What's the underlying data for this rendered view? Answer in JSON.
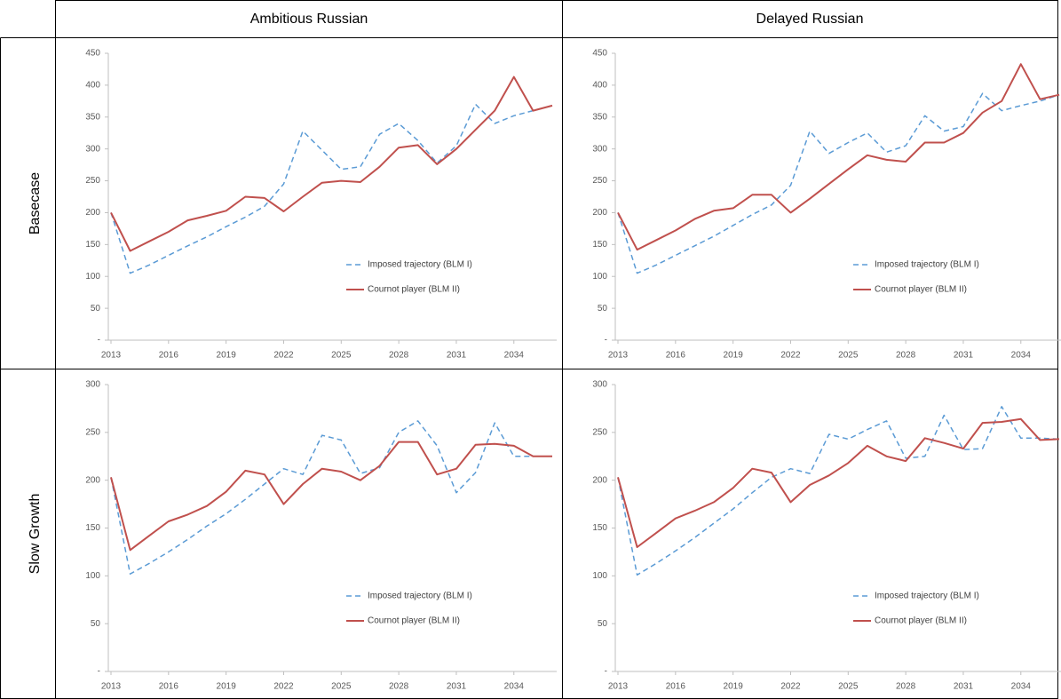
{
  "table": {
    "columns": [
      "Ambitious Russian",
      "Delayed Russian"
    ],
    "rows": [
      "Basecase",
      "Slow Growth"
    ]
  },
  "chart_data": [
    {
      "type": "line",
      "legend": "lower right",
      "x": [
        2013,
        2014,
        2015,
        2016,
        2017,
        2018,
        2019,
        2020,
        2021,
        2022,
        2023,
        2024,
        2025,
        2026,
        2027,
        2028,
        2029,
        2030,
        2031,
        2032,
        2033,
        2034,
        2035,
        2036
      ],
      "xlim": [
        2013,
        2036
      ],
      "xticks": [
        2013,
        2016,
        2019,
        2022,
        2025,
        2028,
        2031,
        2034
      ],
      "ylim": [
        0,
        450
      ],
      "yticks": [
        {
          "value": 0,
          "label": "-"
        },
        50,
        100,
        150,
        200,
        250,
        300,
        350,
        400,
        450
      ],
      "series": [
        {
          "name": "Imposed trajectory (BLM I)",
          "color": "#5b9bd5",
          "line_style": "dashed",
          "values": [
            200,
            105,
            118,
            133,
            148,
            162,
            178,
            193,
            210,
            245,
            328,
            298,
            268,
            272,
            323,
            340,
            313,
            278,
            305,
            370,
            340,
            352,
            360,
            368
          ]
        },
        {
          "name": "Cournot player (BLM II)",
          "color": "#c0504d",
          "line_style": "solid",
          "values": [
            200,
            140,
            155,
            170,
            188,
            195,
            203,
            225,
            223,
            202,
            225,
            247,
            250,
            248,
            272,
            302,
            306,
            276,
            300,
            330,
            360,
            413,
            360,
            368
          ]
        }
      ]
    },
    {
      "type": "line",
      "legend": "lower right",
      "x": [
        2013,
        2014,
        2015,
        2016,
        2017,
        2018,
        2019,
        2020,
        2021,
        2022,
        2023,
        2024,
        2025,
        2026,
        2027,
        2028,
        2029,
        2030,
        2031,
        2032,
        2033,
        2034,
        2035,
        2036
      ],
      "xlim": [
        2013,
        2036
      ],
      "xticks": [
        2013,
        2016,
        2019,
        2022,
        2025,
        2028,
        2031,
        2034
      ],
      "ylim": [
        0,
        450
      ],
      "yticks": [
        {
          "value": 0,
          "label": "-"
        },
        50,
        100,
        150,
        200,
        250,
        300,
        350,
        400,
        450
      ],
      "series": [
        {
          "name": "Imposed trajectory (BLM I)",
          "color": "#5b9bd5",
          "line_style": "dashed",
          "values": [
            200,
            105,
            118,
            133,
            148,
            163,
            180,
            197,
            212,
            243,
            328,
            293,
            310,
            325,
            295,
            305,
            352,
            328,
            335,
            387,
            360,
            368,
            375,
            385
          ]
        },
        {
          "name": "Cournot player (BLM II)",
          "color": "#c0504d",
          "line_style": "solid",
          "values": [
            200,
            142,
            157,
            172,
            190,
            203,
            207,
            228,
            228,
            200,
            222,
            245,
            268,
            290,
            283,
            280,
            310,
            310,
            325,
            357,
            375,
            433,
            378,
            385
          ]
        }
      ]
    },
    {
      "type": "line",
      "legend": "lower right",
      "x": [
        2013,
        2014,
        2015,
        2016,
        2017,
        2018,
        2019,
        2020,
        2021,
        2022,
        2023,
        2024,
        2025,
        2026,
        2027,
        2028,
        2029,
        2030,
        2031,
        2032,
        2033,
        2034,
        2035,
        2036
      ],
      "xlim": [
        2013,
        2036
      ],
      "xticks": [
        2013,
        2016,
        2019,
        2022,
        2025,
        2028,
        2031,
        2034
      ],
      "ylim": [
        0,
        300
      ],
      "yticks": [
        {
          "value": 0,
          "label": "-"
        },
        50,
        100,
        150,
        200,
        250,
        300
      ],
      "series": [
        {
          "name": "Imposed trajectory (BLM I)",
          "color": "#5b9bd5",
          "line_style": "dashed",
          "values": [
            203,
            102,
            113,
            125,
            138,
            152,
            165,
            180,
            196,
            212,
            206,
            247,
            242,
            207,
            213,
            250,
            262,
            236,
            187,
            208,
            260,
            225,
            225,
            225
          ]
        },
        {
          "name": "Cournot player (BLM II)",
          "color": "#c0504d",
          "line_style": "solid",
          "values": [
            203,
            127,
            142,
            157,
            164,
            173,
            188,
            210,
            206,
            175,
            196,
            212,
            209,
            200,
            215,
            240,
            240,
            206,
            212,
            237,
            238,
            236,
            225,
            225
          ]
        }
      ]
    },
    {
      "type": "line",
      "legend": "lower right",
      "x": [
        2013,
        2014,
        2015,
        2016,
        2017,
        2018,
        2019,
        2020,
        2021,
        2022,
        2023,
        2024,
        2025,
        2026,
        2027,
        2028,
        2029,
        2030,
        2031,
        2032,
        2033,
        2034,
        2035,
        2036
      ],
      "xlim": [
        2013,
        2036
      ],
      "xticks": [
        2013,
        2016,
        2019,
        2022,
        2025,
        2028,
        2031,
        2034
      ],
      "ylim": [
        0,
        300
      ],
      "yticks": [
        {
          "value": 0,
          "label": "-"
        },
        50,
        100,
        150,
        200,
        250,
        300
      ],
      "series": [
        {
          "name": "Imposed trajectory (BLM I)",
          "color": "#5b9bd5",
          "line_style": "dashed",
          "values": [
            203,
            101,
            113,
            126,
            140,
            155,
            170,
            187,
            203,
            212,
            207,
            248,
            243,
            253,
            262,
            223,
            225,
            268,
            232,
            233,
            277,
            244,
            244,
            243
          ]
        },
        {
          "name": "Cournot player (BLM II)",
          "color": "#c0504d",
          "line_style": "solid",
          "values": [
            203,
            130,
            145,
            160,
            168,
            177,
            192,
            212,
            208,
            177,
            195,
            205,
            218,
            236,
            225,
            220,
            244,
            239,
            233,
            260,
            261,
            264,
            242,
            243
          ]
        }
      ]
    }
  ]
}
